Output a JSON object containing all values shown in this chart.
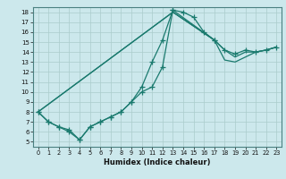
{
  "xlabel": "Humidex (Indice chaleur)",
  "background_color": "#cce8ec",
  "grid_color": "#aacccc",
  "line_color": "#1a7a6e",
  "xlim": [
    -0.5,
    23.5
  ],
  "ylim": [
    4.5,
    18.5
  ],
  "xticks": [
    0,
    1,
    2,
    3,
    4,
    5,
    6,
    7,
    8,
    9,
    10,
    11,
    12,
    13,
    14,
    15,
    16,
    17,
    18,
    19,
    20,
    21,
    22,
    23
  ],
  "yticks": [
    5,
    6,
    7,
    8,
    9,
    10,
    11,
    12,
    13,
    14,
    15,
    16,
    17,
    18
  ],
  "curve1_x": [
    0,
    1,
    2,
    3,
    4,
    5,
    6,
    7,
    8,
    9,
    10,
    11,
    12,
    13,
    14,
    15,
    16,
    17
  ],
  "curve1_y": [
    8.0,
    7.0,
    6.5,
    6.0,
    5.2,
    6.5,
    7.0,
    7.5,
    8.0,
    9.0,
    10.5,
    13.0,
    15.2,
    18.2,
    18.0,
    17.5,
    16.0,
    15.2
  ],
  "curve2_x": [
    0,
    1,
    2,
    3,
    4,
    5,
    6,
    7,
    8,
    9,
    10,
    11,
    12,
    13,
    17,
    18,
    19,
    20,
    21,
    22,
    23
  ],
  "curve2_y": [
    8.0,
    7.0,
    6.5,
    6.2,
    5.2,
    6.5,
    7.0,
    7.5,
    8.0,
    9.0,
    10.0,
    10.5,
    12.5,
    18.2,
    15.2,
    14.2,
    13.8,
    14.2,
    14.0,
    14.2,
    14.5
  ],
  "curve3_x": [
    0,
    13,
    17,
    18,
    19,
    20,
    21,
    22,
    23
  ],
  "curve3_y": [
    8.0,
    18.0,
    15.2,
    14.2,
    13.5,
    14.0,
    14.0,
    14.2,
    14.5
  ],
  "curve4_x": [
    0,
    13,
    17,
    18,
    19,
    20,
    21,
    22,
    23
  ],
  "curve4_y": [
    8.0,
    18.0,
    15.2,
    13.2,
    13.0,
    13.5,
    14.0,
    14.2,
    14.5
  ]
}
